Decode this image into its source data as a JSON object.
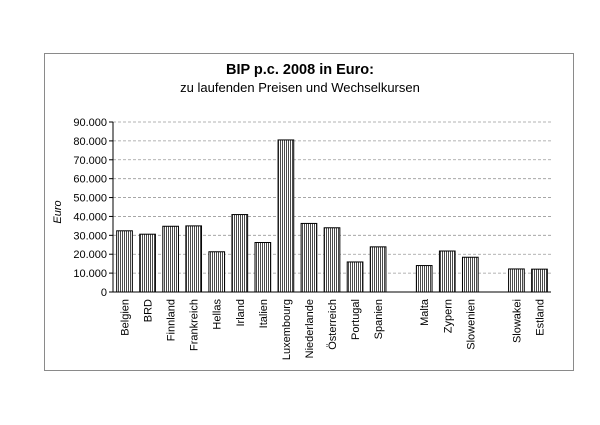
{
  "chart_data": {
    "type": "bar",
    "title": "BIP p.c. 2008 in Euro:",
    "subtitle": "zu laufenden Preisen und Wechselkursen",
    "ylabel": "Euro",
    "xlabel": "",
    "ylim": [
      0,
      90000
    ],
    "yticks": [
      "0",
      "10.000",
      "20.000",
      "30.000",
      "40.000",
      "50.000",
      "60.000",
      "70.000",
      "80.000",
      "90.000"
    ],
    "grid": true,
    "categories": [
      "Belgien",
      "BRD",
      "Finnland",
      "Frankreich",
      "Hellas",
      "Irland",
      "Italien",
      "Luxembourg",
      "Niederlande",
      "Österreich",
      "Portugal",
      "Spanien",
      "",
      "Malta",
      "Zypern",
      "Slowenien",
      "",
      "Slowakei",
      "Estland"
    ],
    "values": [
      32400,
      30600,
      34800,
      35000,
      21300,
      41000,
      26200,
      80500,
      36300,
      34000,
      15900,
      23900,
      null,
      14000,
      21700,
      18400,
      null,
      12200,
      12100
    ]
  }
}
